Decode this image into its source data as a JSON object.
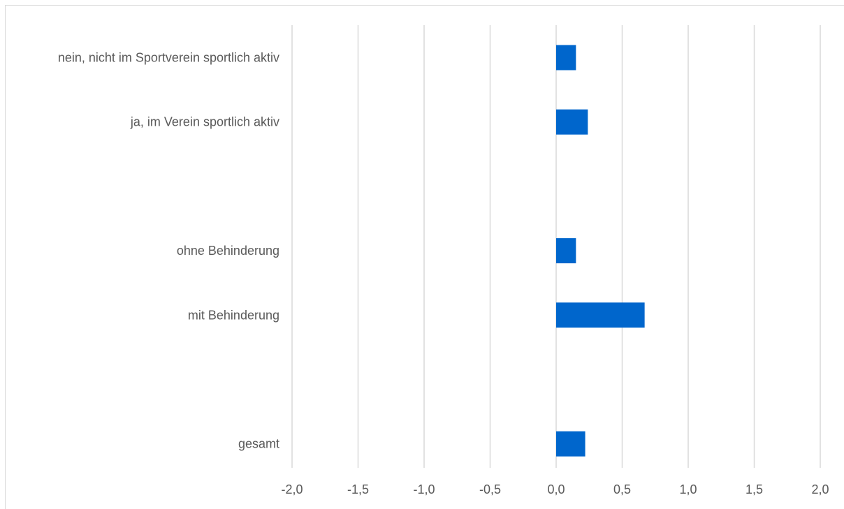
{
  "chart_data": {
    "type": "bar",
    "orientation": "horizontal",
    "title": "",
    "xlabel": "",
    "ylabel": "",
    "categories": [
      "nein, nicht im Sportverein sportlich aktiv",
      "ja, im Verein sportlich aktiv",
      "",
      "ohne Behinderung",
      "mit Behinderung",
      "",
      "gesamt"
    ],
    "values": [
      0.15,
      0.24,
      null,
      0.15,
      0.67,
      null,
      0.22
    ],
    "xlim": [
      -2.0,
      2.0
    ],
    "ticks": [
      -2.0,
      -1.5,
      -1.0,
      -0.5,
      0.0,
      0.5,
      1.0,
      1.5,
      2.0
    ],
    "tick_labels": [
      "-2,0",
      "-1,5",
      "-1,0",
      "-0,5",
      "0,0",
      "0,5",
      "1,0",
      "1,5",
      "2,0"
    ],
    "grid": "vertical",
    "legend": "none",
    "colors": {
      "bar": "#0066CC",
      "grid": "#d9d9d9",
      "text": "#595959"
    }
  }
}
